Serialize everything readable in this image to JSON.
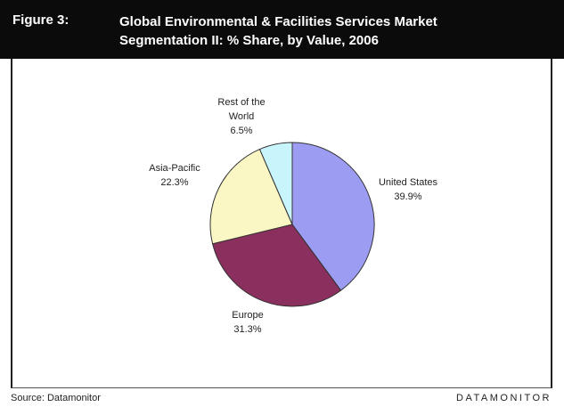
{
  "figure_label": "Figure 3:",
  "title_line1": "Global Environmental & Facilities Services Market",
  "title_line2": "Segmentation II: % Share, by Value, 2006",
  "source": "Source: Datamonitor",
  "brand": "DATAMONITOR",
  "chart_data": {
    "type": "pie",
    "title": "Global Environmental & Facilities Services Market Segmentation II: % Share, by Value, 2006",
    "slices": [
      {
        "label_lines": [
          "United States"
        ],
        "value_text": "39.9%",
        "value": 39.9,
        "color": "#9c9cf2"
      },
      {
        "label_lines": [
          "Europe"
        ],
        "value_text": "31.3%",
        "value": 31.3,
        "color": "#8b2f5e"
      },
      {
        "label_lines": [
          "Asia-Pacific"
        ],
        "value_text": "22.3%",
        "value": 22.3,
        "color": "#fbf7c4"
      },
      {
        "label_lines": [
          "Rest of the",
          "World"
        ],
        "value_text": "6.5%",
        "value": 6.5,
        "color": "#c8f4fb"
      }
    ]
  }
}
